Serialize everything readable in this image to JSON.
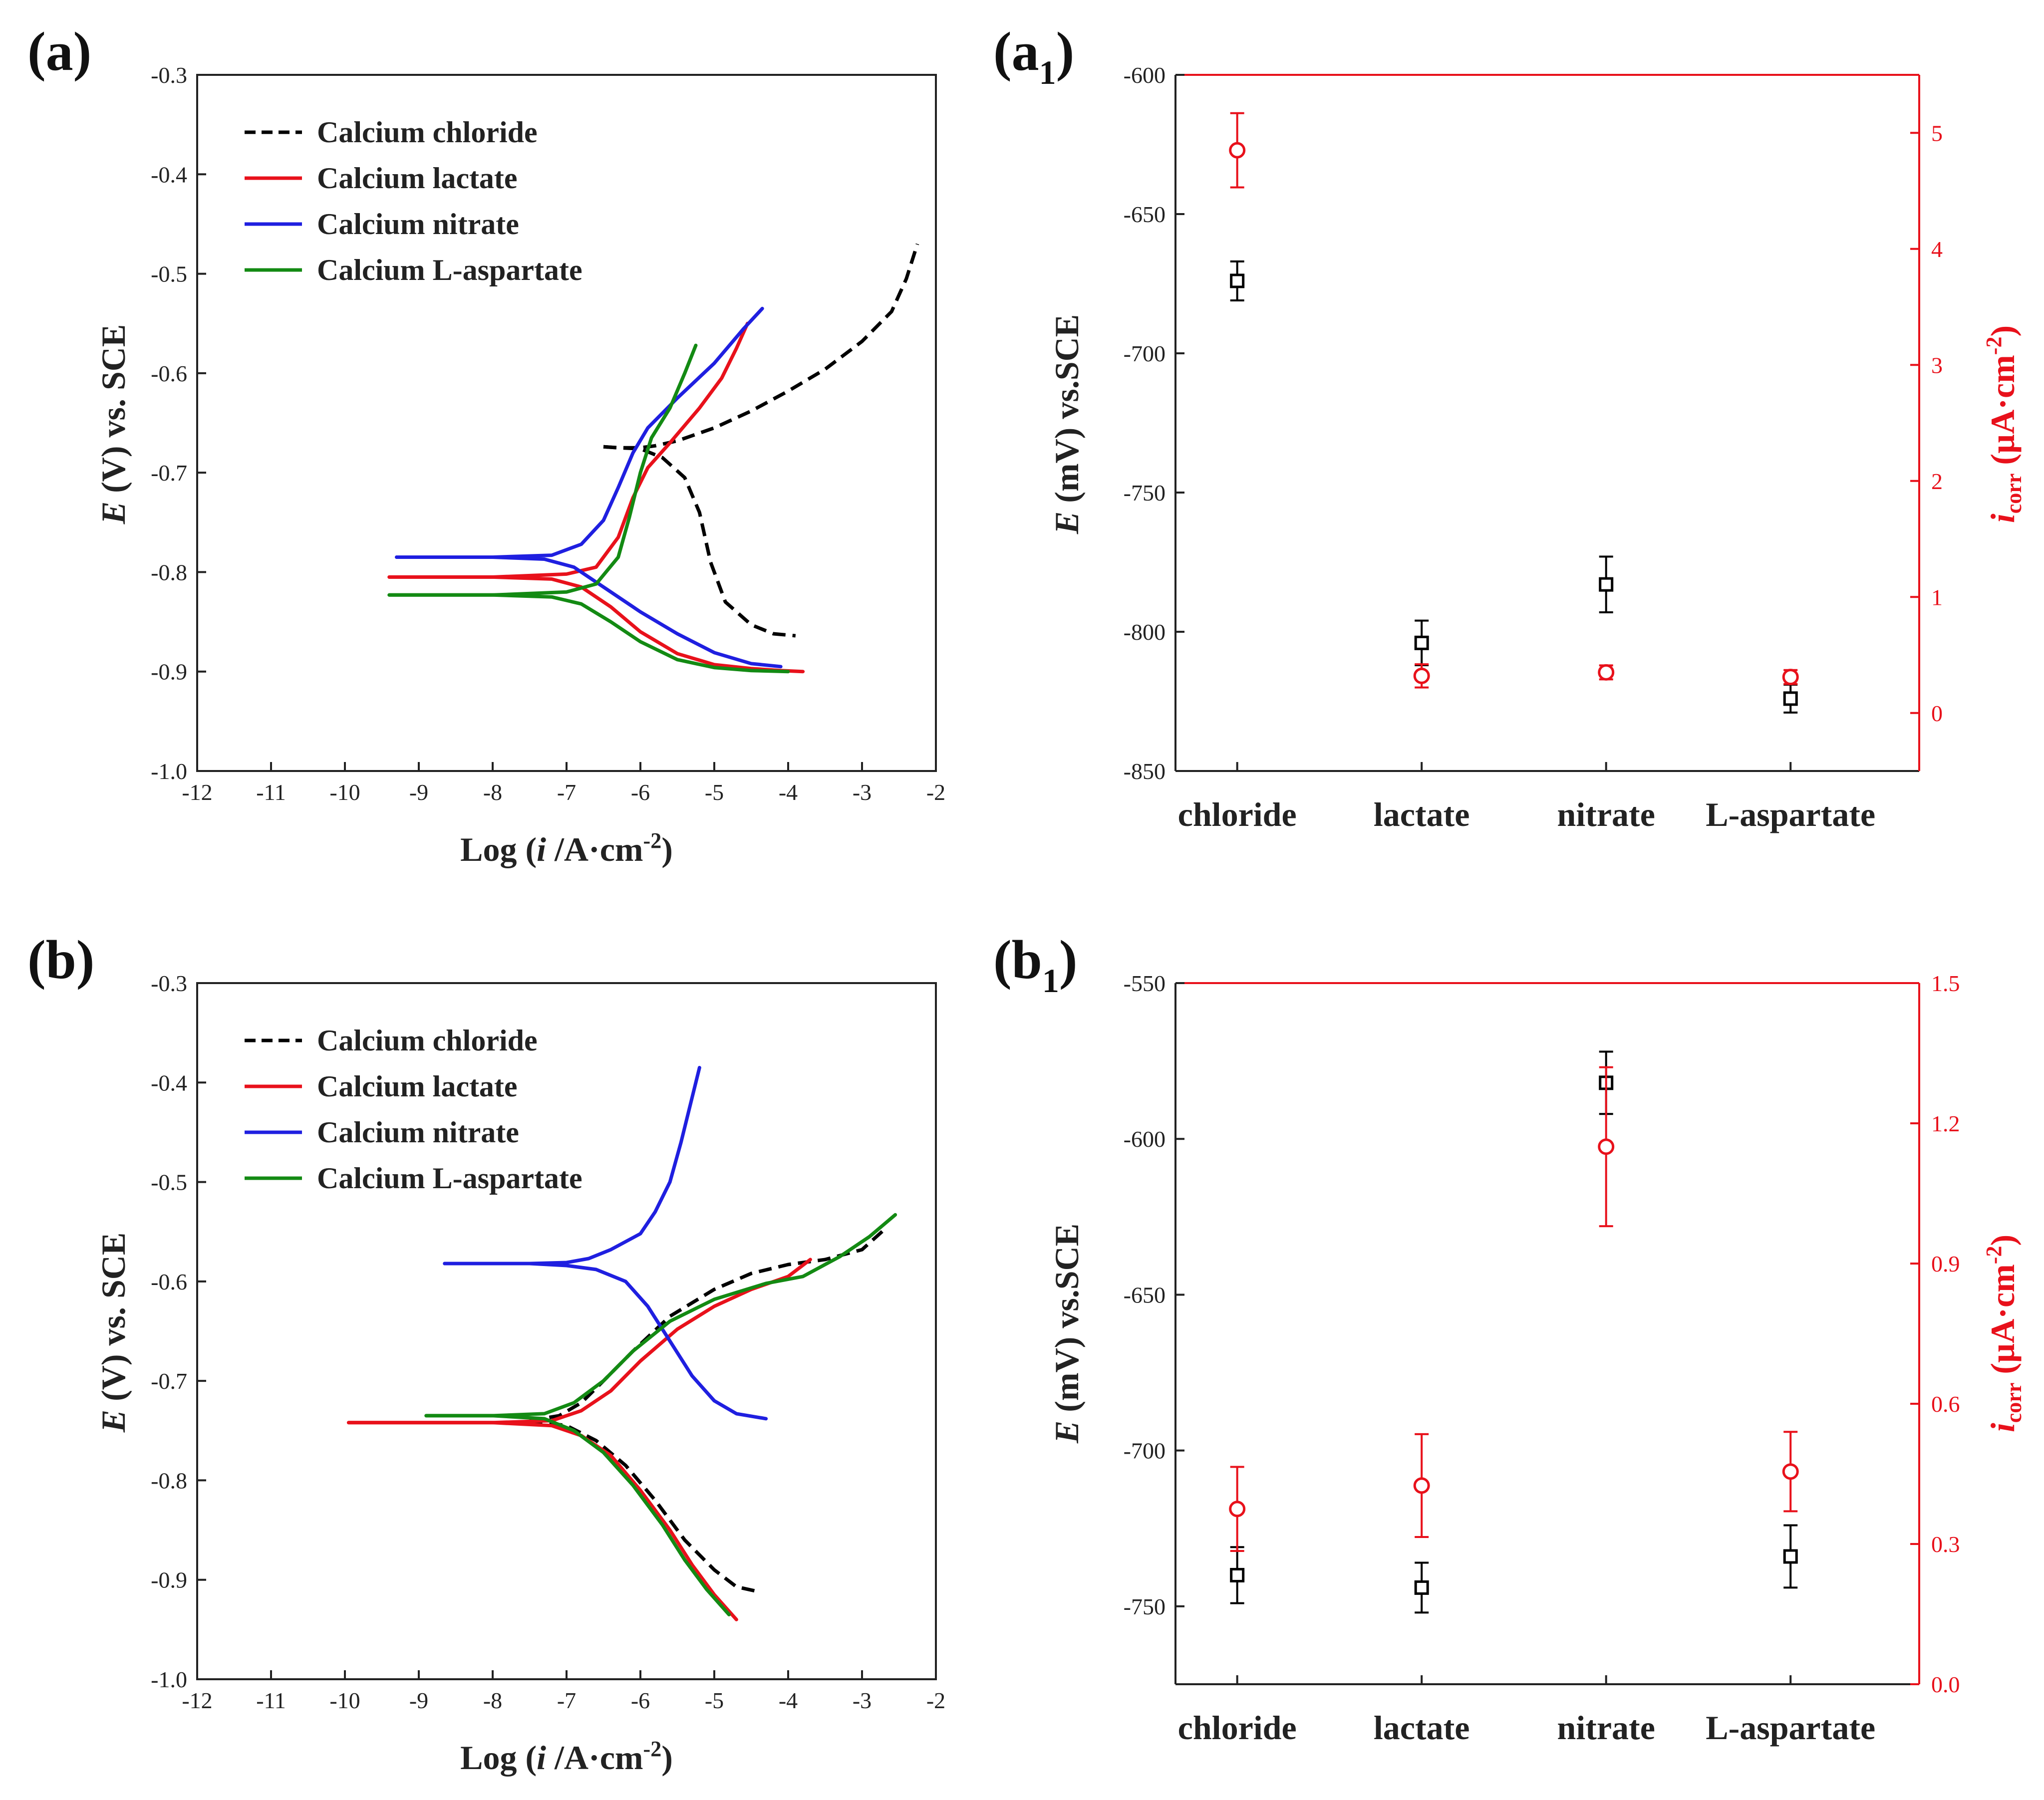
{
  "panels": {
    "a": {
      "label": "(a)"
    },
    "a1": {
      "label_open": "(a",
      "label_sub": "1",
      "label_close": ")"
    },
    "b": {
      "label": "(b)"
    },
    "b1": {
      "label_open": "(b",
      "label_sub": "1",
      "label_close": ")"
    }
  },
  "axis_text": {
    "x_label": {
      "pre": "Log (",
      "var": "i",
      "mid": " /A·cm",
      "sup": "-2",
      "post": ")"
    },
    "e_v_label": {
      "var": "E",
      "text": " (V) vs. SCE"
    },
    "e_mv_label": {
      "var": "E",
      "text": " (mV) vs.SCE"
    },
    "icorr_label": {
      "var": "i",
      "sub": "corr",
      "mid": " (µA·cm",
      "sup": "-2",
      "post": ")"
    }
  },
  "legend": [
    {
      "name": "Calcium chloride",
      "color": "#000000",
      "dash": "dash"
    },
    {
      "name": "Calcium lactate",
      "color": "#e8111b",
      "dash": "solid"
    },
    {
      "name": "Calcium nitrate",
      "color": "#1f1fe0",
      "dash": "solid"
    },
    {
      "name": "Calcium L-aspartate",
      "color": "#138a13",
      "dash": "solid"
    }
  ],
  "chart_data": [
    {
      "id": "a",
      "type": "line",
      "title": "(a)",
      "xlabel": "Log (i /A·cm-2)",
      "ylabel": "E (V) vs. SCE",
      "xlim": [
        -12,
        -2
      ],
      "ylim": [
        -1.0,
        -0.3
      ],
      "xticks": [
        -12,
        -11,
        -10,
        -9,
        -8,
        -7,
        -6,
        -5,
        -4,
        -3,
        -2
      ],
      "yticks": [
        -0.3,
        -0.4,
        -0.5,
        -0.6,
        -0.7,
        -0.8,
        -0.9,
        -1.0
      ],
      "series": [
        {
          "name": "Calcium chloride",
          "color": "#000000",
          "dash": "dash",
          "anodic": [
            [
              -6.5,
              -0.674
            ],
            [
              -6.3,
              -0.675
            ],
            [
              -6.0,
              -0.675
            ],
            [
              -5.8,
              -0.673
            ],
            [
              -5.5,
              -0.668
            ],
            [
              -5.0,
              -0.655
            ],
            [
              -4.5,
              -0.638
            ],
            [
              -4.0,
              -0.618
            ],
            [
              -3.5,
              -0.596
            ],
            [
              -3.0,
              -0.568
            ],
            [
              -2.6,
              -0.538
            ],
            [
              -2.4,
              -0.505
            ],
            [
              -2.25,
              -0.47
            ]
          ],
          "cathodic": [
            [
              -6.5,
              -0.674
            ],
            [
              -6.3,
              -0.675
            ],
            [
              -6.0,
              -0.676
            ],
            [
              -5.7,
              -0.685
            ],
            [
              -5.4,
              -0.705
            ],
            [
              -5.2,
              -0.74
            ],
            [
              -5.05,
              -0.79
            ],
            [
              -4.85,
              -0.83
            ],
            [
              -4.5,
              -0.853
            ],
            [
              -4.2,
              -0.862
            ],
            [
              -3.9,
              -0.864
            ]
          ]
        },
        {
          "name": "Calcium lactate",
          "color": "#e8111b",
          "dash": "solid",
          "anodic": [
            [
              -9.4,
              -0.805
            ],
            [
              -8.0,
              -0.805
            ],
            [
              -7.0,
              -0.802
            ],
            [
              -6.6,
              -0.795
            ],
            [
              -6.3,
              -0.765
            ],
            [
              -6.1,
              -0.725
            ],
            [
              -5.9,
              -0.695
            ],
            [
              -5.6,
              -0.67
            ],
            [
              -5.2,
              -0.635
            ],
            [
              -4.9,
              -0.605
            ],
            [
              -4.7,
              -0.575
            ],
            [
              -4.55,
              -0.55
            ]
          ],
          "cathodic": [
            [
              -9.4,
              -0.805
            ],
            [
              -8.0,
              -0.805
            ],
            [
              -7.2,
              -0.807
            ],
            [
              -6.8,
              -0.815
            ],
            [
              -6.4,
              -0.835
            ],
            [
              -6.0,
              -0.86
            ],
            [
              -5.5,
              -0.882
            ],
            [
              -5.0,
              -0.893
            ],
            [
              -4.5,
              -0.897
            ],
            [
              -4.1,
              -0.899
            ],
            [
              -3.8,
              -0.9
            ]
          ]
        },
        {
          "name": "Calcium nitrate",
          "color": "#1f1fe0",
          "dash": "solid",
          "anodic": [
            [
              -9.3,
              -0.785
            ],
            [
              -8.0,
              -0.785
            ],
            [
              -7.2,
              -0.783
            ],
            [
              -6.8,
              -0.772
            ],
            [
              -6.5,
              -0.748
            ],
            [
              -6.3,
              -0.715
            ],
            [
              -6.1,
              -0.68
            ],
            [
              -5.9,
              -0.655
            ],
            [
              -5.5,
              -0.625
            ],
            [
              -5.0,
              -0.59
            ],
            [
              -4.6,
              -0.555
            ],
            [
              -4.35,
              -0.535
            ]
          ],
          "cathodic": [
            [
              -9.3,
              -0.785
            ],
            [
              -8.0,
              -0.785
            ],
            [
              -7.3,
              -0.787
            ],
            [
              -6.9,
              -0.795
            ],
            [
              -6.5,
              -0.815
            ],
            [
              -6.0,
              -0.84
            ],
            [
              -5.5,
              -0.862
            ],
            [
              -5.0,
              -0.881
            ],
            [
              -4.5,
              -0.892
            ],
            [
              -4.1,
              -0.895
            ]
          ]
        },
        {
          "name": "Calcium L-aspartate",
          "color": "#138a13",
          "dash": "solid",
          "anodic": [
            [
              -9.4,
              -0.823
            ],
            [
              -8.0,
              -0.823
            ],
            [
              -7.0,
              -0.82
            ],
            [
              -6.6,
              -0.812
            ],
            [
              -6.3,
              -0.785
            ],
            [
              -6.15,
              -0.745
            ],
            [
              -6.0,
              -0.7
            ],
            [
              -5.85,
              -0.665
            ],
            [
              -5.6,
              -0.635
            ],
            [
              -5.4,
              -0.6
            ],
            [
              -5.25,
              -0.572
            ]
          ],
          "cathodic": [
            [
              -9.4,
              -0.823
            ],
            [
              -8.0,
              -0.823
            ],
            [
              -7.2,
              -0.825
            ],
            [
              -6.8,
              -0.832
            ],
            [
              -6.4,
              -0.85
            ],
            [
              -6.0,
              -0.87
            ],
            [
              -5.5,
              -0.888
            ],
            [
              -5.0,
              -0.896
            ],
            [
              -4.5,
              -0.899
            ],
            [
              -4.0,
              -0.9
            ]
          ]
        }
      ]
    },
    {
      "id": "a1",
      "type": "scatter",
      "title": "(a1)",
      "categories": [
        "chloride",
        "lactate",
        "nitrate",
        "L-aspartate"
      ],
      "left_axis": {
        "label": "E (mV) vs.SCE",
        "ylim": [
          -850,
          -600
        ],
        "ticks": [
          -600,
          -650,
          -700,
          -750,
          -800,
          -850
        ]
      },
      "right_axis": {
        "label": "icorr (µA·cm-2)",
        "ylim": [
          -0.5,
          5.5
        ],
        "ticks": [
          0,
          1,
          2,
          3,
          4,
          5
        ]
      },
      "series": [
        {
          "name": "E",
          "axis": "left",
          "color": "#000000",
          "marker": "square",
          "values": [
            -674,
            -804,
            -783,
            -824
          ],
          "errors": [
            7,
            8,
            10,
            5
          ]
        },
        {
          "name": "icorr",
          "axis": "right",
          "color": "#e8111b",
          "marker": "circle",
          "values": [
            4.85,
            0.32,
            0.35,
            0.31
          ],
          "errors": [
            0.32,
            0.1,
            0.06,
            0.06
          ]
        }
      ]
    },
    {
      "id": "b",
      "type": "line",
      "title": "(b)",
      "xlabel": "Log (i /A·cm-2)",
      "ylabel": "E (V) vs. SCE",
      "xlim": [
        -12,
        -2
      ],
      "ylim": [
        -1.0,
        -0.3
      ],
      "xticks": [
        -12,
        -11,
        -10,
        -9,
        -8,
        -7,
        -6,
        -5,
        -4,
        -3,
        -2
      ],
      "yticks": [
        -0.3,
        -0.4,
        -0.5,
        -0.6,
        -0.7,
        -0.8,
        -0.9,
        -1.0
      ],
      "series": [
        {
          "name": "Calcium chloride",
          "color": "#000000",
          "dash": "dash",
          "anodic": [
            [
              -7.5,
              -0.74
            ],
            [
              -7.1,
              -0.735
            ],
            [
              -6.8,
              -0.722
            ],
            [
              -6.5,
              -0.7
            ],
            [
              -6.1,
              -0.67
            ],
            [
              -5.6,
              -0.635
            ],
            [
              -5.0,
              -0.608
            ],
            [
              -4.5,
              -0.592
            ],
            [
              -4.0,
              -0.583
            ],
            [
              -3.5,
              -0.578
            ],
            [
              -3.0,
              -0.568
            ],
            [
              -2.7,
              -0.548
            ]
          ],
          "cathodic": [
            [
              -7.5,
              -0.74
            ],
            [
              -7.0,
              -0.745
            ],
            [
              -6.6,
              -0.76
            ],
            [
              -6.2,
              -0.785
            ],
            [
              -5.8,
              -0.82
            ],
            [
              -5.4,
              -0.86
            ],
            [
              -5.0,
              -0.89
            ],
            [
              -4.7,
              -0.907
            ],
            [
              -4.4,
              -0.912
            ]
          ]
        },
        {
          "name": "Calcium lactate",
          "color": "#e8111b",
          "dash": "solid",
          "anodic": [
            [
              -9.95,
              -0.742
            ],
            [
              -8.0,
              -0.742
            ],
            [
              -7.2,
              -0.74
            ],
            [
              -6.8,
              -0.73
            ],
            [
              -6.4,
              -0.71
            ],
            [
              -6.0,
              -0.68
            ],
            [
              -5.5,
              -0.648
            ],
            [
              -5.0,
              -0.625
            ],
            [
              -4.5,
              -0.608
            ],
            [
              -4.0,
              -0.595
            ],
            [
              -3.7,
              -0.578
            ]
          ],
          "cathodic": [
            [
              -9.95,
              -0.742
            ],
            [
              -8.0,
              -0.742
            ],
            [
              -7.2,
              -0.745
            ],
            [
              -6.8,
              -0.755
            ],
            [
              -6.4,
              -0.775
            ],
            [
              -6.0,
              -0.81
            ],
            [
              -5.6,
              -0.85
            ],
            [
              -5.3,
              -0.885
            ],
            [
              -5.0,
              -0.915
            ],
            [
              -4.7,
              -0.94
            ]
          ]
        },
        {
          "name": "Calcium nitrate",
          "color": "#1f1fe0",
          "dash": "solid",
          "anodic": [
            [
              -8.65,
              -0.582
            ],
            [
              -7.5,
              -0.582
            ],
            [
              -7.0,
              -0.581
            ],
            [
              -6.7,
              -0.577
            ],
            [
              -6.4,
              -0.568
            ],
            [
              -6.0,
              -0.552
            ],
            [
              -5.8,
              -0.53
            ],
            [
              -5.6,
              -0.5
            ],
            [
              -5.45,
              -0.46
            ],
            [
              -5.3,
              -0.415
            ],
            [
              -5.2,
              -0.385
            ]
          ],
          "cathodic": [
            [
              -8.65,
              -0.582
            ],
            [
              -7.5,
              -0.582
            ],
            [
              -7.0,
              -0.584
            ],
            [
              -6.6,
              -0.588
            ],
            [
              -6.2,
              -0.6
            ],
            [
              -5.9,
              -0.625
            ],
            [
              -5.6,
              -0.66
            ],
            [
              -5.3,
              -0.695
            ],
            [
              -5.0,
              -0.72
            ],
            [
              -4.7,
              -0.733
            ],
            [
              -4.3,
              -0.738
            ]
          ]
        },
        {
          "name": "Calcium L-aspartate",
          "color": "#138a13",
          "dash": "solid",
          "anodic": [
            [
              -8.9,
              -0.735
            ],
            [
              -8.0,
              -0.735
            ],
            [
              -7.3,
              -0.733
            ],
            [
              -6.9,
              -0.722
            ],
            [
              -6.5,
              -0.7
            ],
            [
              -6.1,
              -0.67
            ],
            [
              -5.6,
              -0.64
            ],
            [
              -5.0,
              -0.618
            ],
            [
              -4.3,
              -0.602
            ],
            [
              -3.8,
              -0.595
            ],
            [
              -3.3,
              -0.575
            ],
            [
              -2.9,
              -0.555
            ],
            [
              -2.55,
              -0.533
            ]
          ],
          "cathodic": [
            [
              -8.9,
              -0.735
            ],
            [
              -8.0,
              -0.735
            ],
            [
              -7.3,
              -0.738
            ],
            [
              -6.9,
              -0.75
            ],
            [
              -6.5,
              -0.772
            ],
            [
              -6.1,
              -0.805
            ],
            [
              -5.7,
              -0.845
            ],
            [
              -5.4,
              -0.88
            ],
            [
              -5.1,
              -0.91
            ],
            [
              -4.8,
              -0.935
            ]
          ]
        }
      ]
    },
    {
      "id": "b1",
      "type": "scatter",
      "title": "(b1)",
      "categories": [
        "chloride",
        "lactate",
        "nitrate",
        "L-aspartate"
      ],
      "left_axis": {
        "label": "E (mV) vs.SCE",
        "ylim": [
          -775,
          -550
        ],
        "ticks": [
          -550,
          -600,
          -650,
          -700,
          -750
        ]
      },
      "right_axis": {
        "label": "icorr (µA·cm-2)",
        "ylim": [
          0,
          1.5
        ],
        "ticks": [
          0.0,
          0.3,
          0.6,
          0.9,
          1.2,
          1.5
        ],
        "tick_labels": [
          "0.0",
          "0.3",
          "0.6",
          "0.9",
          "1.2",
          "1.5"
        ]
      },
      "series": [
        {
          "name": "E",
          "axis": "left",
          "color": "#000000",
          "marker": "square",
          "values": [
            -740,
            -744,
            -582,
            -734
          ],
          "errors": [
            9,
            8,
            10,
            10
          ]
        },
        {
          "name": "icorr",
          "axis": "right",
          "color": "#e8111b",
          "marker": "circle",
          "values": [
            0.375,
            0.425,
            1.15,
            0.455
          ],
          "errors": [
            0.09,
            0.11,
            0.17,
            0.085
          ]
        }
      ]
    }
  ]
}
